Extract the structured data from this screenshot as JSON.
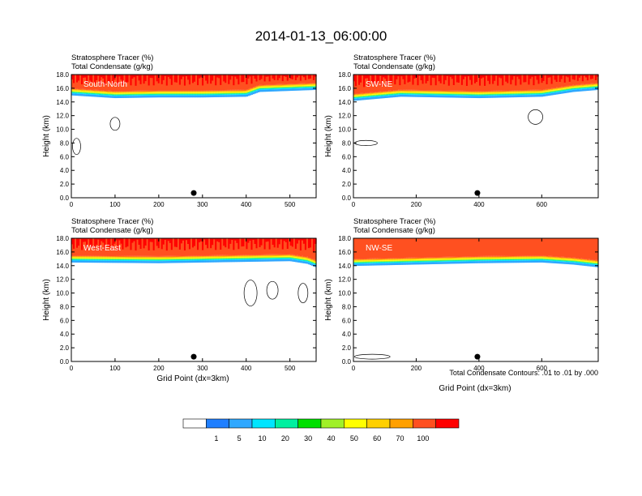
{
  "title": "2014-01-13_06:00:00",
  "panel_titles": {
    "line1": "Stratosphere Tracer   (%)",
    "line2": "Total Condensate   (g/kg)"
  },
  "ylabel": "Height (km)",
  "xlabel": "Grid Point (dx=3km)",
  "contour_note": "Total Condensate Contours: .01 to .01 by .000",
  "y_ticks": [
    "0.0",
    "2.0",
    "4.0",
    "6.0",
    "8.0",
    "10.0",
    "12.0",
    "14.0",
    "16.0",
    "18.0"
  ],
  "colorbar": {
    "colors": [
      "#ffffff",
      "#1f7fff",
      "#2fa8ff",
      "#00e5ff",
      "#00f0a0",
      "#00e000",
      "#a0f028",
      "#ffff00",
      "#ffd000",
      "#ffa000",
      "#ff5020",
      "#ff0000"
    ],
    "labels": [
      "1",
      "5",
      "10",
      "20",
      "30",
      "40",
      "50",
      "60",
      "70",
      "100"
    ]
  },
  "colors": {
    "trop_band_top": "#ff0000",
    "trop_band_mid": "#ff5020"
  },
  "chart_data": [
    {
      "type": "heatmap",
      "panel": "South-North",
      "title": "Stratosphere Tracer   (%)",
      "subtitle": "Total Condensate   (g/kg)",
      "xlabel": "",
      "ylabel": "Height (km)",
      "xlim": [
        0,
        560
      ],
      "ylim": [
        0,
        18
      ],
      "x_ticks": [
        "0",
        "100",
        "200",
        "300",
        "400",
        "500"
      ],
      "tropopause_km": [
        [
          0,
          16.0
        ],
        [
          100,
          15.6
        ],
        [
          200,
          15.7
        ],
        [
          300,
          15.7
        ],
        [
          400,
          15.8
        ],
        [
          430,
          16.5
        ],
        [
          560,
          16.8
        ]
      ],
      "surface_marker_x": 280
    },
    {
      "type": "heatmap",
      "panel": "SW-NE",
      "title": "Stratosphere Tracer   (%)",
      "subtitle": "Total Condensate   (g/kg)",
      "xlabel": "",
      "ylabel": "Height (km)",
      "xlim": [
        0,
        780
      ],
      "ylim": [
        0,
        18
      ],
      "x_ticks": [
        "0",
        "200",
        "400",
        "600"
      ],
      "tropopause_km": [
        [
          0,
          15.2
        ],
        [
          150,
          15.8
        ],
        [
          400,
          15.6
        ],
        [
          600,
          15.8
        ],
        [
          700,
          16.5
        ],
        [
          780,
          16.8
        ]
      ],
      "surface_marker_x": 395
    },
    {
      "type": "heatmap",
      "panel": "West-East",
      "title": "Stratosphere Tracer   (%)",
      "subtitle": "Total Condensate   (g/kg)",
      "xlabel": "Grid Point (dx=3km)",
      "ylabel": "Height (km)",
      "xlim": [
        0,
        560
      ],
      "ylim": [
        0,
        18
      ],
      "x_ticks": [
        "0",
        "100",
        "200",
        "300",
        "400",
        "500"
      ],
      "tropopause_km": [
        [
          0,
          15.5
        ],
        [
          200,
          15.4
        ],
        [
          400,
          15.6
        ],
        [
          500,
          15.7
        ],
        [
          540,
          15.3
        ],
        [
          560,
          14.8
        ]
      ],
      "surface_marker_x": 280
    },
    {
      "type": "heatmap",
      "panel": "NW-SE",
      "title": "Stratosphere Tracer   (%)",
      "subtitle": "Total Condensate   (g/kg)",
      "xlabel": "Grid Point (dx=3km)",
      "ylabel": "Height (km)",
      "xlim": [
        0,
        780
      ],
      "ylim": [
        0,
        18
      ],
      "x_ticks": [
        "0",
        "200",
        "400",
        "600"
      ],
      "tropopause_km": [
        [
          0,
          15.0
        ],
        [
          200,
          15.2
        ],
        [
          400,
          15.4
        ],
        [
          600,
          15.5
        ],
        [
          700,
          15.2
        ],
        [
          780,
          14.8
        ]
      ],
      "surface_marker_x": 395
    }
  ]
}
